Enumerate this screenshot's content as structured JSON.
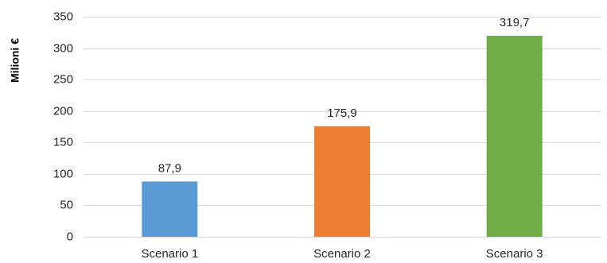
{
  "chart_data": {
    "type": "bar",
    "title": "",
    "xlabel": "",
    "ylabel": "Milioni €",
    "categories": [
      "Scenario 1",
      "Scenario 2",
      "Scenario 3"
    ],
    "values": [
      87.9,
      175.9,
      319.7
    ],
    "data_labels": [
      "87,9",
      "175,9",
      "319,7"
    ],
    "colors": [
      "#5b9bd5",
      "#ed7d31",
      "#70ad47"
    ],
    "ylim": [
      0,
      350
    ],
    "yticks": [
      0,
      50,
      100,
      150,
      200,
      250,
      300,
      350
    ],
    "ytick_labels": [
      "0",
      "50",
      "100",
      "150",
      "200",
      "250",
      "300",
      "350"
    ],
    "grid": true,
    "legend": "none"
  }
}
